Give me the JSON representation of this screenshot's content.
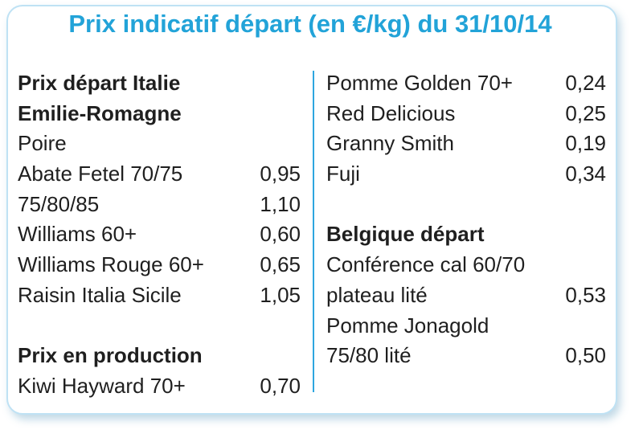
{
  "title": "Prix indicatif départ (en €/kg) du 31/10/14",
  "left": {
    "heading1": "Prix départ Italie",
    "heading2": "Emilie-Romagne",
    "category": "Poire",
    "items": [
      {
        "label": "Abate Fetel 70/75",
        "value": "0,95"
      },
      {
        "label": "75/80/85",
        "value": "1,10"
      },
      {
        "label": "Williams 60+",
        "value": "0,60"
      },
      {
        "label": "Williams Rouge 60+",
        "value": "0,65"
      },
      {
        "label": "Raisin Italia Sicile",
        "value": "1,05"
      }
    ],
    "production_heading": "Prix en production",
    "production_items": [
      {
        "label": "Kiwi Hayward 70+",
        "value": "0,70"
      }
    ]
  },
  "right": {
    "items": [
      {
        "label": "Pomme Golden 70+",
        "value": "0,24"
      },
      {
        "label": "Red Delicious",
        "value": "0,25"
      },
      {
        "label": "Granny Smith",
        "value": "0,19"
      },
      {
        "label": "Fuji",
        "value": "0,34"
      }
    ],
    "belgique_heading": "Belgique départ",
    "belgique_items": [
      {
        "label": "Conférence cal 60/70",
        "value": ""
      },
      {
        "label": "plateau lité",
        "value": "0,53"
      },
      {
        "label": "Pomme Jonagold",
        "value": ""
      },
      {
        "label": "75/80 lité",
        "value": "0,50"
      }
    ]
  }
}
